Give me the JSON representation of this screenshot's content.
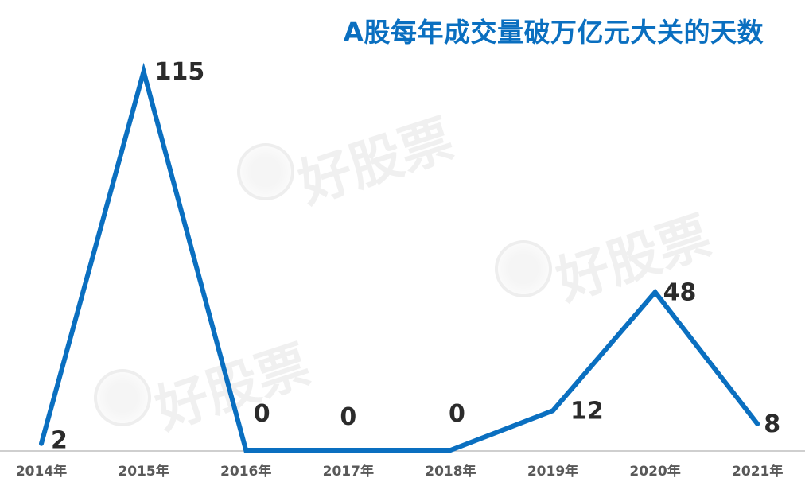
{
  "chart_data": {
    "type": "line",
    "title": "A股每年成交量破万亿元大关的天数",
    "categories": [
      "2014年",
      "2015年",
      "2016年",
      "2017年",
      "2018年",
      "2019年",
      "2020年",
      "2021年"
    ],
    "values": [
      2,
      115,
      0,
      0,
      0,
      12,
      48,
      8
    ],
    "data_labels": [
      "2",
      "115",
      "0",
      "0",
      "0",
      "12",
      "48",
      "8"
    ],
    "xlabel": "",
    "ylabel": "",
    "ylim": [
      0,
      120
    ],
    "grid": false,
    "legend": "none"
  },
  "watermark": {
    "text": "好股票"
  },
  "colors": {
    "line": "#0a6fc0",
    "title": "#0a6fc0",
    "axis": "#bfbfbf",
    "label": "#2b2b2b",
    "tick": "#595959"
  }
}
